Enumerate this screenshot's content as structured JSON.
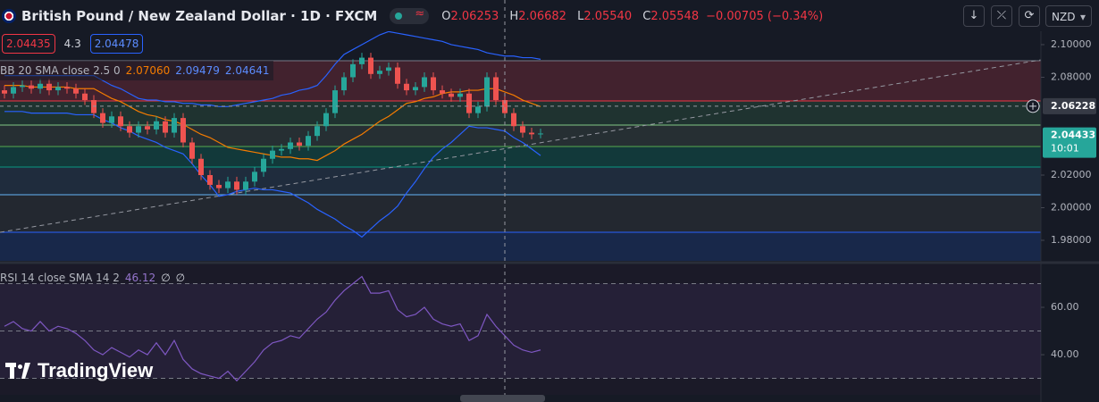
{
  "header": {
    "title": "British Pound / New Zealand Dollar · 1D · FXCM",
    "ohlc": [
      {
        "label": "O",
        "value": "2.06253"
      },
      {
        "label": "H",
        "value": "2.06682"
      },
      {
        "label": "L",
        "value": "2.05540"
      },
      {
        "label": "C",
        "value": "2.05548"
      }
    ],
    "change": "−0.00705 (−0.34%)",
    "bid": "2.04435",
    "spread": "4.3",
    "ask": "2.04478",
    "currency": "NZD",
    "watermark": "TradingView"
  },
  "chart_data": [
    {
      "type": "candlestick",
      "indicator": "BB 20 SMA close 2.5 0",
      "legend_values": [
        "2.07060",
        "2.09479",
        "2.04641"
      ],
      "ylim": [
        1.9674,
        2.1082
      ],
      "yticks": [
        {
          "value": 2.1,
          "label": "2.10000"
        },
        {
          "value": 2.08,
          "label": "2.08000"
        },
        {
          "value": 2.02,
          "label": "2.02000"
        },
        {
          "value": 2.0,
          "label": "2.00000"
        },
        {
          "value": 1.98,
          "label": "1.98000"
        }
      ],
      "up_color": "#26a69a",
      "down_color": "#ef5350",
      "grid": false,
      "open": [
        2.072,
        2.07,
        2.074,
        2.075,
        2.073,
        2.076,
        2.072,
        2.074,
        2.073,
        2.07,
        2.066,
        2.058,
        2.052,
        2.056,
        2.05,
        2.046,
        2.05,
        2.048,
        2.053,
        2.046,
        2.055,
        2.04,
        2.03,
        2.02,
        2.014,
        2.012,
        2.016,
        2.011,
        2.016,
        2.022,
        2.03,
        2.035,
        2.036,
        2.04,
        2.038,
        2.044,
        2.05,
        2.058,
        2.072,
        2.08,
        2.088,
        2.092,
        2.082,
        2.084,
        2.086,
        2.076,
        2.072,
        2.074,
        2.08,
        2.072,
        2.07,
        2.068,
        2.07,
        2.058,
        2.062,
        2.08,
        2.066,
        2.058,
        2.05,
        2.046,
        2.045
      ],
      "high": [
        2.075,
        2.077,
        2.078,
        2.078,
        2.079,
        2.079,
        2.077,
        2.077,
        2.076,
        2.073,
        2.069,
        2.061,
        2.059,
        2.059,
        2.053,
        2.053,
        2.053,
        2.056,
        2.056,
        2.058,
        2.058,
        2.043,
        2.033,
        2.023,
        2.017,
        2.019,
        2.019,
        2.019,
        2.025,
        2.033,
        2.038,
        2.039,
        2.043,
        2.043,
        2.047,
        2.053,
        2.061,
        2.075,
        2.083,
        2.091,
        2.095,
        2.095,
        2.087,
        2.089,
        2.089,
        2.079,
        2.077,
        2.083,
        2.083,
        2.075,
        2.073,
        2.073,
        2.073,
        2.065,
        2.083,
        2.083,
        2.069,
        2.061,
        2.053,
        2.049,
        2.0485
      ],
      "low": [
        2.067,
        2.067,
        2.071,
        2.07,
        2.07,
        2.069,
        2.069,
        2.07,
        2.067,
        2.063,
        2.055,
        2.049,
        2.049,
        2.047,
        2.043,
        2.043,
        2.045,
        2.045,
        2.043,
        2.043,
        2.037,
        2.027,
        2.017,
        2.011,
        2.009,
        2.009,
        2.008,
        2.008,
        2.013,
        2.019,
        2.027,
        2.032,
        2.033,
        2.035,
        2.035,
        2.041,
        2.047,
        2.055,
        2.069,
        2.077,
        2.085,
        2.079,
        2.079,
        2.081,
        2.073,
        2.069,
        2.069,
        2.071,
        2.069,
        2.067,
        2.065,
        2.065,
        2.055,
        2.055,
        2.059,
        2.063,
        2.055,
        2.047,
        2.043,
        2.042,
        2.0425
      ],
      "close": [
        2.07,
        2.074,
        2.075,
        2.073,
        2.076,
        2.072,
        2.074,
        2.073,
        2.07,
        2.066,
        2.058,
        2.052,
        2.056,
        2.05,
        2.046,
        2.05,
        2.048,
        2.053,
        2.046,
        2.055,
        2.04,
        2.03,
        2.02,
        2.014,
        2.012,
        2.016,
        2.011,
        2.016,
        2.022,
        2.03,
        2.035,
        2.036,
        2.04,
        2.038,
        2.044,
        2.05,
        2.058,
        2.072,
        2.08,
        2.088,
        2.092,
        2.082,
        2.084,
        2.086,
        2.076,
        2.072,
        2.074,
        2.08,
        2.072,
        2.07,
        2.068,
        2.07,
        2.058,
        2.062,
        2.08,
        2.066,
        2.058,
        2.05,
        2.046,
        2.045,
        2.0455
      ],
      "series": [
        {
          "color": "#f57c00",
          "values": [
            2.075,
            2.075,
            2.075,
            2.074,
            2.074,
            2.074,
            2.074,
            2.074,
            2.073,
            2.073,
            2.073,
            2.07,
            2.067,
            2.065,
            2.062,
            2.059,
            2.057,
            2.056,
            2.054,
            2.053,
            2.051,
            2.048,
            2.045,
            2.043,
            2.04,
            2.037,
            2.036,
            2.035,
            2.034,
            2.033,
            2.032,
            2.031,
            2.031,
            2.03,
            2.03,
            2.029,
            2.032,
            2.035,
            2.039,
            2.042,
            2.045,
            2.049,
            2.053,
            2.056,
            2.06,
            2.064,
            2.065,
            2.067,
            2.068,
            2.07,
            2.071,
            2.071,
            2.072,
            2.072,
            2.073,
            2.073,
            2.071,
            2.069,
            2.066,
            2.064,
            2.062
          ]
        },
        {
          "color": "#2962ff",
          "values": [
            2.081,
            2.081,
            2.081,
            2.081,
            2.081,
            2.081,
            2.081,
            2.081,
            2.081,
            2.081,
            2.081,
            2.078,
            2.075,
            2.073,
            2.07,
            2.067,
            2.066,
            2.066,
            2.065,
            2.065,
            2.064,
            2.064,
            2.063,
            2.063,
            2.062,
            2.062,
            2.063,
            2.064,
            2.065,
            2.066,
            2.067,
            2.069,
            2.07,
            2.072,
            2.073,
            2.075,
            2.081,
            2.088,
            2.094,
            2.097,
            2.1,
            2.103,
            2.106,
            2.108,
            2.107,
            2.106,
            2.105,
            2.104,
            2.103,
            2.102,
            2.1,
            2.099,
            2.098,
            2.097,
            2.095,
            2.094,
            2.093,
            2.093,
            2.092,
            2.092,
            2.091
          ]
        },
        {
          "color": "#2962ff",
          "values": [
            2.059,
            2.059,
            2.059,
            2.058,
            2.058,
            2.058,
            2.058,
            2.058,
            2.057,
            2.057,
            2.057,
            2.054,
            2.052,
            2.049,
            2.047,
            2.044,
            2.042,
            2.04,
            2.037,
            2.035,
            2.033,
            2.027,
            2.02,
            2.014,
            2.007,
            2.008,
            2.01,
            2.011,
            2.012,
            2.011,
            2.011,
            2.01,
            2.009,
            2.006,
            2.003,
            1.999,
            1.996,
            1.993,
            1.989,
            1.986,
            1.982,
            1.987,
            1.992,
            1.996,
            2.001,
            2.009,
            2.016,
            2.024,
            2.031,
            2.036,
            2.04,
            2.045,
            2.05,
            2.049,
            2.049,
            2.048,
            2.047,
            2.043,
            2.04,
            2.036,
            2.032
          ]
        }
      ],
      "price_labels": [
        {
          "value": 2.06228,
          "label": "2.06228",
          "color": "#363a45"
        },
        {
          "value": 2.04433,
          "label": "2.04433",
          "sublabel": "10:01",
          "color": "#26a69a"
        }
      ]
    },
    {
      "type": "line",
      "indicator": "RSI 14 close SMA 14 2",
      "legend_values": [
        "46.12",
        "∅",
        "∅"
      ],
      "ylim": [
        23.8,
        76.6
      ],
      "yticks": [
        {
          "value": 60,
          "label": "60.00"
        },
        {
          "value": 40,
          "label": "40.00"
        }
      ],
      "bands": [
        30,
        50,
        70
      ],
      "series": [
        {
          "color": "#7e57c2",
          "values": [
            52,
            54,
            51,
            50,
            54,
            50,
            52,
            51,
            49,
            46,
            42,
            40,
            43,
            41,
            39,
            42,
            40,
            45,
            40,
            46,
            38,
            34,
            32,
            31,
            30,
            33,
            29,
            33,
            37,
            42,
            45,
            46,
            48,
            47,
            51,
            55,
            58,
            63,
            67,
            70,
            73,
            66,
            66,
            67,
            59,
            56,
            57,
            60,
            55,
            53,
            52,
            53,
            46,
            48,
            57,
            52,
            48,
            44,
            42,
            41,
            42
          ]
        }
      ]
    }
  ]
}
